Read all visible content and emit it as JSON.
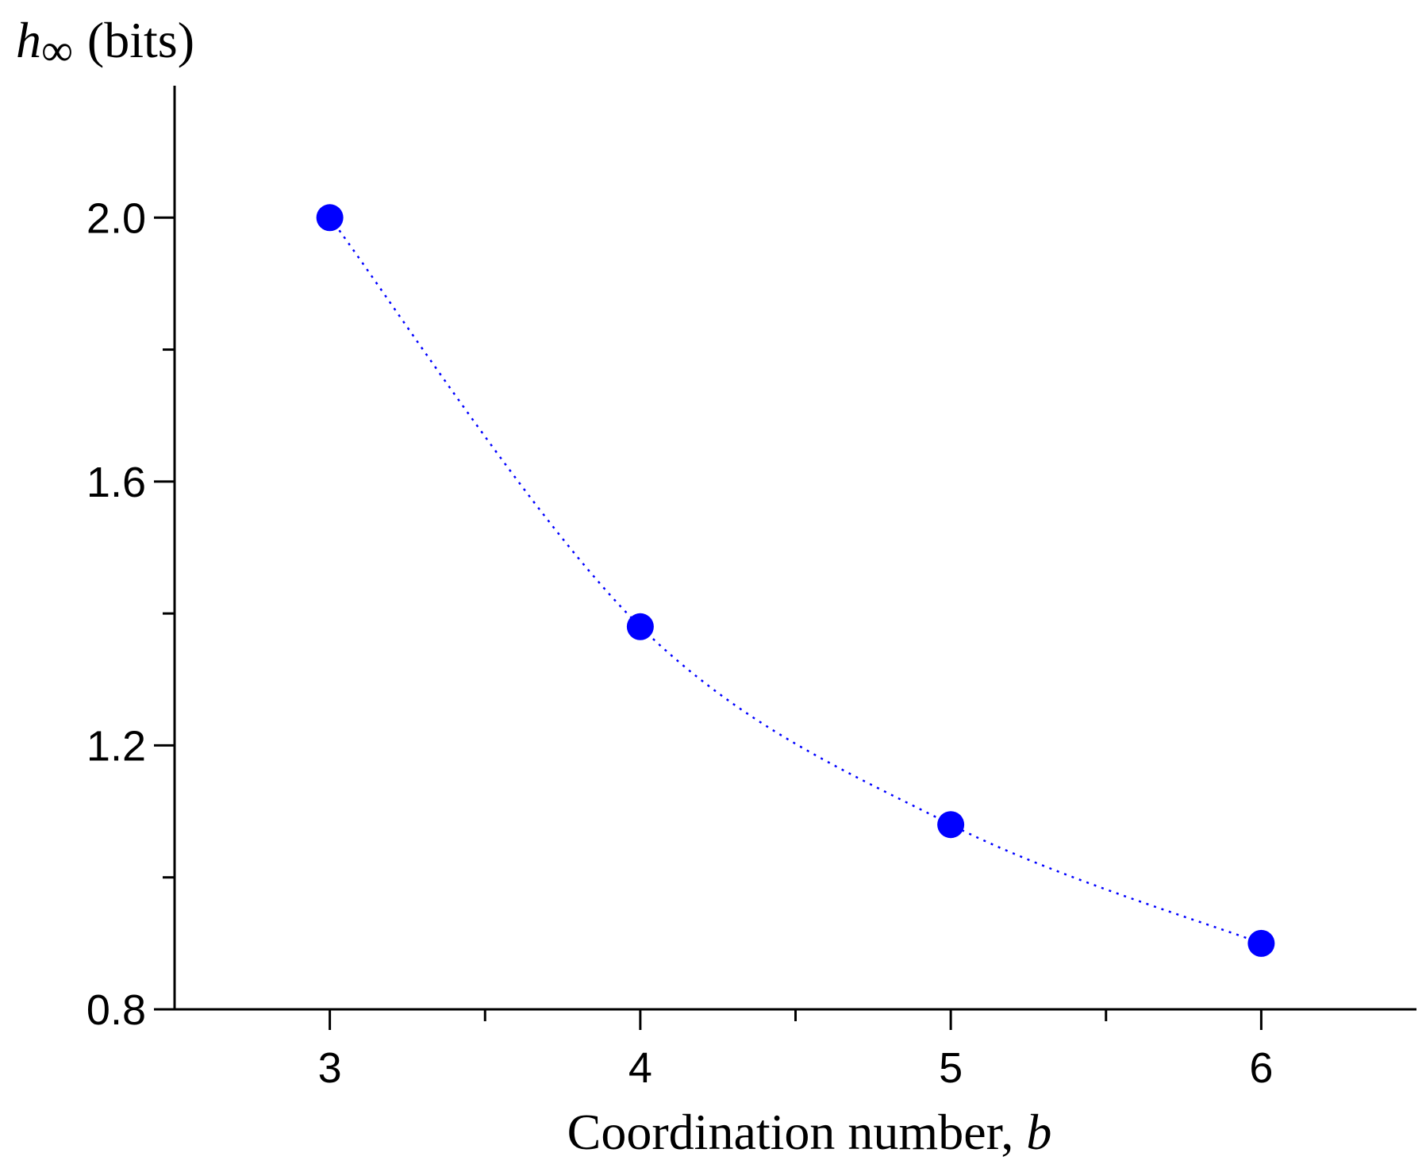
{
  "chart_data": {
    "type": "scatter",
    "series": [
      {
        "x": [
          3,
          4,
          5,
          6
        ],
        "y": [
          2.0,
          1.38,
          1.08,
          0.9
        ],
        "color": "#0000ff",
        "line_style": "dotted"
      }
    ],
    "xlabel_text": "Coordination number, ",
    "xlabel_var": "b",
    "ylabel_symbol": "h",
    "ylabel_subscript": "∞",
    "ylabel_unit": "(bits)",
    "xlim": [
      2.5,
      6.5
    ],
    "ylim": [
      0.8,
      2.2
    ],
    "x_ticks": [
      3,
      4,
      5,
      6
    ],
    "x_tick_labels": [
      "3",
      "4",
      "5",
      "6"
    ],
    "x_minor_ticks": [
      3.5,
      4.5,
      5.5
    ],
    "y_ticks": [
      0.8,
      1.2,
      1.6,
      2.0
    ],
    "y_tick_labels": [
      "0.8",
      "1.2",
      "1.6",
      "2.0"
    ],
    "y_minor_ticks": [
      1.0,
      1.4,
      1.8
    ],
    "grid": false,
    "legend": "none"
  }
}
